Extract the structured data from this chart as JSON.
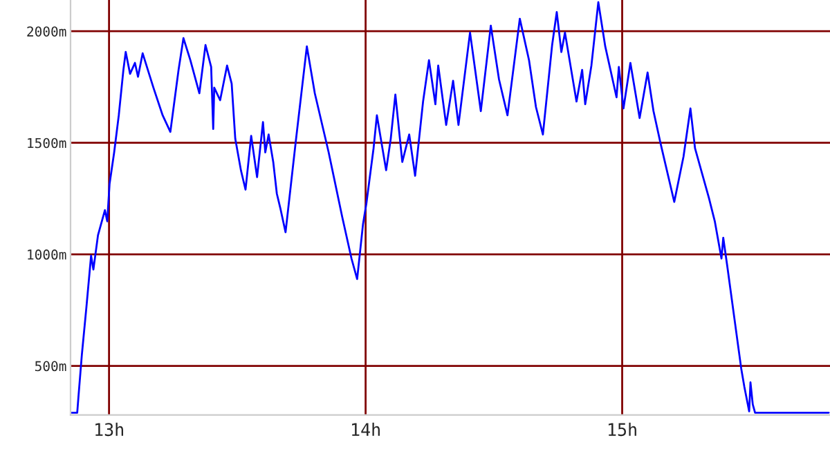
{
  "chart_data": {
    "type": "line",
    "xlim": [
      12.85,
      15.81
    ],
    "ylim": [
      280,
      2140
    ],
    "xticks": [
      {
        "value": 13,
        "label": "13h"
      },
      {
        "value": 14,
        "label": "14h"
      },
      {
        "value": 15,
        "label": "15h"
      }
    ],
    "yticks": [
      {
        "value": 500,
        "label": "500m"
      },
      {
        "value": 1000,
        "label": "1000m"
      },
      {
        "value": 1500,
        "label": "1500m"
      },
      {
        "value": 2000,
        "label": "2000m"
      }
    ],
    "grid": true,
    "marker": "none",
    "line_style": "solid",
    "series": [
      {
        "color": "#0000ff",
        "x": [
          12.853,
          12.876,
          12.881,
          12.894,
          12.912,
          12.93,
          12.939,
          12.957,
          12.984,
          12.993,
          13.002,
          13.02,
          13.038,
          13.056,
          13.065,
          13.082,
          13.101,
          13.113,
          13.131,
          13.173,
          13.209,
          13.239,
          13.271,
          13.29,
          13.317,
          13.352,
          13.376,
          13.398,
          13.406,
          13.41,
          13.433,
          13.46,
          13.478,
          13.492,
          13.514,
          13.532,
          13.554,
          13.577,
          13.6,
          13.609,
          13.622,
          13.64,
          13.654,
          13.667,
          13.688,
          13.729,
          13.771,
          13.802,
          13.856,
          13.909,
          13.945,
          13.967,
          13.99,
          14.003,
          14.031,
          14.044,
          14.08,
          14.098,
          14.116,
          14.143,
          14.17,
          14.193,
          14.224,
          14.247,
          14.272,
          14.283,
          14.314,
          14.341,
          14.362,
          14.407,
          14.449,
          14.488,
          14.52,
          14.553,
          14.601,
          14.637,
          14.664,
          14.691,
          14.727,
          14.745,
          14.763,
          14.777,
          14.822,
          14.844,
          14.856,
          14.88,
          14.907,
          14.934,
          14.978,
          14.987,
          15.005,
          15.032,
          15.068,
          15.099,
          15.122,
          15.149,
          15.203,
          15.239,
          15.266,
          15.284,
          15.338,
          15.361,
          15.387,
          15.394,
          15.41,
          15.437,
          15.464,
          15.476,
          15.495,
          15.5,
          15.509,
          15.518,
          15.805
        ],
        "values": [
          290,
          290,
          364,
          549,
          765,
          994,
          932,
          1086,
          1198,
          1148,
          1315,
          1457,
          1623,
          1827,
          1907,
          1809,
          1858,
          1796,
          1901,
          1747,
          1623,
          1549,
          1827,
          1969,
          1870,
          1722,
          1938,
          1840,
          1562,
          1747,
          1691,
          1846,
          1765,
          1518,
          1377,
          1290,
          1531,
          1346,
          1593,
          1457,
          1537,
          1414,
          1272,
          1210,
          1099,
          1518,
          1932,
          1722,
          1457,
          1167,
          981,
          889,
          1136,
          1228,
          1475,
          1623,
          1377,
          1518,
          1716,
          1414,
          1537,
          1352,
          1685,
          1870,
          1673,
          1846,
          1580,
          1778,
          1580,
          1994,
          1642,
          2025,
          1784,
          1623,
          2056,
          1870,
          1660,
          1537,
          1938,
          2086,
          1907,
          1994,
          1685,
          1827,
          1673,
          1846,
          2130,
          1932,
          1704,
          1840,
          1654,
          1858,
          1611,
          1815,
          1642,
          1500,
          1235,
          1438,
          1654,
          1475,
          1253,
          1148,
          981,
          1074,
          944,
          716,
          488,
          407,
          296,
          426,
          327,
          290,
          290
        ]
      }
    ]
  }
}
